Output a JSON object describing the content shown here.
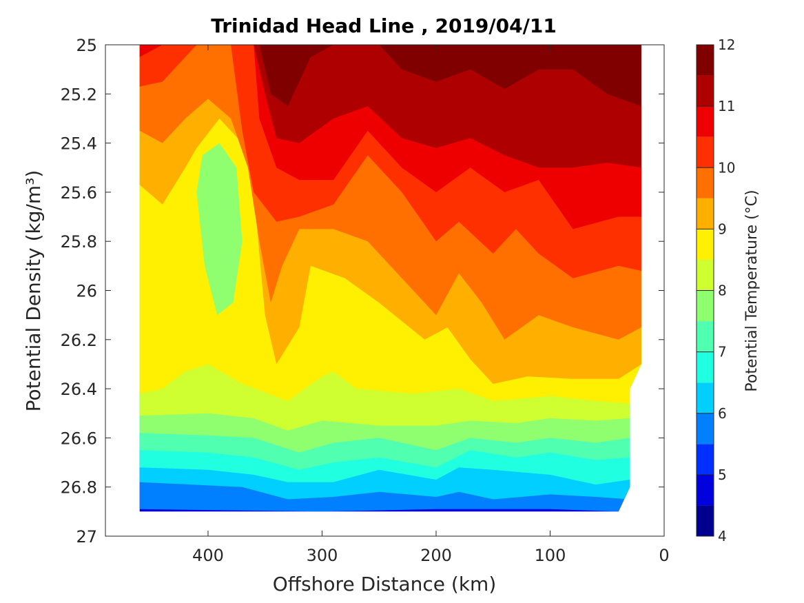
{
  "chart_data": {
    "type": "heatmap",
    "title": "Trinidad Head Line , 2019/04/11",
    "xlabel": "Offshore Distance (km)",
    "ylabel": "Potential Density (kg/m³)",
    "xlim": [
      490,
      0
    ],
    "ylim": [
      27,
      25
    ],
    "x_ticks": [
      "400",
      "300",
      "200",
      "100",
      "0"
    ],
    "x_tick_values": [
      400,
      300,
      200,
      100,
      0
    ],
    "y_ticks": [
      "25",
      "25.2",
      "25.4",
      "25.6",
      "25.8",
      "26",
      "26.2",
      "26.4",
      "26.6",
      "26.8",
      "27"
    ],
    "y_tick_values": [
      25,
      25.2,
      25.4,
      25.6,
      25.8,
      26,
      26.2,
      26.4,
      26.6,
      26.8,
      27
    ],
    "colorbar": {
      "label": "Potential Temperature (°C)",
      "ticks": [
        "4",
        "5",
        "6",
        "7",
        "8",
        "9",
        "10",
        "11",
        "12"
      ],
      "tick_values": [
        4,
        5,
        6,
        7,
        8,
        9,
        10,
        11,
        12
      ],
      "range": [
        4,
        12
      ],
      "levels": [
        4,
        4.5,
        5,
        5.5,
        6,
        6.5,
        7,
        7.5,
        8,
        8.5,
        9,
        9.5,
        10,
        10.5,
        11,
        11.5,
        12
      ],
      "colors": [
        "#00008f",
        "#0000df",
        "#0030ff",
        "#0080ff",
        "#00cfff",
        "#20ffdf",
        "#50ffaf",
        "#8fff70",
        "#cfff30",
        "#ffef00",
        "#ffaf00",
        "#ff7000",
        "#ff3000",
        "#ef0000",
        "#af0000",
        "#800000"
      ]
    },
    "data_extent": {
      "x_range_km": [
        460,
        20
      ],
      "density_range": [
        25,
        26.9
      ]
    },
    "contour_boundaries": [
      {
        "upper_band": 5.5,
        "lower_band": 4.5,
        "points": [
          [
            460,
            26.89
          ],
          [
            300,
            26.9
          ],
          [
            200,
            26.89
          ],
          [
            100,
            26.89
          ],
          [
            40,
            26.9
          ]
        ]
      },
      {
        "upper_band": 6.0,
        "lower_band": 5.5,
        "points": [
          [
            460,
            26.78
          ],
          [
            370,
            26.8
          ],
          [
            330,
            26.85
          ],
          [
            290,
            26.84
          ],
          [
            250,
            26.82
          ],
          [
            200,
            26.84
          ],
          [
            180,
            26.82
          ],
          [
            150,
            26.85
          ],
          [
            100,
            26.83
          ],
          [
            60,
            26.84
          ],
          [
            30,
            26.85
          ]
        ]
      },
      {
        "upper_band": 6.5,
        "lower_band": 6.0,
        "points": [
          [
            460,
            26.72
          ],
          [
            400,
            26.73
          ],
          [
            360,
            26.75
          ],
          [
            330,
            26.78
          ],
          [
            290,
            26.78
          ],
          [
            250,
            26.73
          ],
          [
            200,
            26.77
          ],
          [
            180,
            26.72
          ],
          [
            150,
            26.73
          ],
          [
            100,
            26.75
          ],
          [
            60,
            26.79
          ],
          [
            30,
            26.77
          ]
        ]
      },
      {
        "upper_band": 7.0,
        "lower_band": 6.5,
        "points": [
          [
            460,
            26.65
          ],
          [
            400,
            26.66
          ],
          [
            360,
            26.68
          ],
          [
            320,
            26.73
          ],
          [
            290,
            26.7
          ],
          [
            250,
            26.68
          ],
          [
            200,
            26.72
          ],
          [
            170,
            26.65
          ],
          [
            130,
            26.68
          ],
          [
            100,
            26.66
          ],
          [
            60,
            26.69
          ],
          [
            30,
            26.68
          ]
        ]
      },
      {
        "upper_band": 7.5,
        "lower_band": 7.0,
        "points": [
          [
            460,
            26.58
          ],
          [
            400,
            26.59
          ],
          [
            360,
            26.6
          ],
          [
            320,
            26.66
          ],
          [
            290,
            26.62
          ],
          [
            250,
            26.6
          ],
          [
            200,
            26.65
          ],
          [
            170,
            26.6
          ],
          [
            130,
            26.62
          ],
          [
            100,
            26.6
          ],
          [
            60,
            26.62
          ],
          [
            30,
            26.6
          ]
        ]
      },
      {
        "upper_band": 8.0,
        "lower_band": 7.5,
        "points": [
          [
            460,
            26.51
          ],
          [
            400,
            26.5
          ],
          [
            360,
            26.52
          ],
          [
            330,
            26.57
          ],
          [
            300,
            26.53
          ],
          [
            250,
            26.55
          ],
          [
            200,
            26.55
          ],
          [
            170,
            26.53
          ],
          [
            130,
            26.54
          ],
          [
            100,
            26.52
          ],
          [
            60,
            26.53
          ],
          [
            30,
            26.52
          ]
        ]
      },
      {
        "upper_band": 8.5,
        "lower_band": 8.0,
        "points": [
          [
            460,
            26.42
          ],
          [
            440,
            26.4
          ],
          [
            420,
            26.33
          ],
          [
            400,
            26.3
          ],
          [
            370,
            26.38
          ],
          [
            330,
            26.45
          ],
          [
            300,
            26.35
          ],
          [
            290,
            26.33
          ],
          [
            270,
            26.4
          ],
          [
            220,
            26.42
          ],
          [
            180,
            26.4
          ],
          [
            150,
            26.45
          ],
          [
            100,
            26.43
          ],
          [
            60,
            26.45
          ],
          [
            30,
            26.46
          ],
          [
            20,
            26.4
          ]
        ]
      },
      {
        "upper_band": 9.0,
        "lower_band": 8.5,
        "points": [
          [
            460,
            25.57
          ],
          [
            440,
            25.65
          ],
          [
            420,
            25.5
          ],
          [
            410,
            25.42
          ],
          [
            390,
            25.3
          ],
          [
            370,
            25.4
          ],
          [
            360,
            25.6
          ],
          [
            350,
            26.1
          ],
          [
            340,
            26.3
          ],
          [
            320,
            26.15
          ],
          [
            310,
            25.9
          ],
          [
            280,
            25.95
          ],
          [
            250,
            26.05
          ],
          [
            210,
            26.2
          ],
          [
            190,
            26.15
          ],
          [
            170,
            26.28
          ],
          [
            150,
            26.38
          ],
          [
            120,
            26.35
          ],
          [
            80,
            26.36
          ],
          [
            40,
            26.36
          ],
          [
            20,
            26.3
          ]
        ]
      },
      {
        "upper_band": 9.5,
        "lower_band": 9.0,
        "points": [
          [
            460,
            25.35
          ],
          [
            440,
            25.4
          ],
          [
            420,
            25.3
          ],
          [
            400,
            25.22
          ],
          [
            380,
            25.3
          ],
          [
            365,
            25.5
          ],
          [
            355,
            25.8
          ],
          [
            345,
            26.05
          ],
          [
            335,
            25.9
          ],
          [
            320,
            25.75
          ],
          [
            290,
            25.75
          ],
          [
            260,
            25.8
          ],
          [
            230,
            25.95
          ],
          [
            200,
            26.1
          ],
          [
            180,
            25.93
          ],
          [
            160,
            26.05
          ],
          [
            140,
            26.2
          ],
          [
            110,
            26.1
          ],
          [
            80,
            26.15
          ],
          [
            40,
            26.2
          ],
          [
            20,
            26.15
          ]
        ]
      },
      {
        "upper_band": 10.0,
        "lower_band": 9.5,
        "points": [
          [
            460,
            25.17
          ],
          [
            440,
            25.15
          ],
          [
            410,
            25.0
          ],
          [
            380,
            25.0
          ],
          [
            370,
            25.35
          ],
          [
            360,
            25.6
          ],
          [
            340,
            25.72
          ],
          [
            320,
            25.7
          ],
          [
            290,
            25.65
          ],
          [
            260,
            25.45
          ],
          [
            230,
            25.6
          ],
          [
            200,
            25.8
          ],
          [
            180,
            25.72
          ],
          [
            150,
            25.85
          ],
          [
            130,
            25.75
          ],
          [
            110,
            25.85
          ],
          [
            80,
            25.95
          ],
          [
            40,
            25.9
          ],
          [
            20,
            25.92
          ]
        ]
      },
      {
        "upper_band": 10.5,
        "lower_band": 10.0,
        "points": [
          [
            460,
            25.05
          ],
          [
            440,
            25.0
          ],
          [
            360,
            25.0
          ],
          [
            355,
            25.3
          ],
          [
            340,
            25.5
          ],
          [
            320,
            25.55
          ],
          [
            290,
            25.55
          ],
          [
            260,
            25.35
          ],
          [
            230,
            25.5
          ],
          [
            200,
            25.6
          ],
          [
            170,
            25.5
          ],
          [
            140,
            25.6
          ],
          [
            110,
            25.55
          ],
          [
            80,
            25.75
          ],
          [
            40,
            25.7
          ],
          [
            20,
            25.7
          ]
        ]
      },
      {
        "upper_band": 11.0,
        "lower_band": 10.5,
        "points": [
          [
            360,
            25.0
          ],
          [
            350,
            25.2
          ],
          [
            340,
            25.38
          ],
          [
            320,
            25.4
          ],
          [
            290,
            25.3
          ],
          [
            260,
            25.25
          ],
          [
            230,
            25.38
          ],
          [
            200,
            25.42
          ],
          [
            170,
            25.38
          ],
          [
            140,
            25.45
          ],
          [
            110,
            25.5
          ],
          [
            80,
            25.5
          ],
          [
            50,
            25.48
          ],
          [
            20,
            25.5
          ]
        ]
      },
      {
        "upper_band": 11.5,
        "lower_band": 11.0,
        "points": [
          [
            355,
            25.0
          ],
          [
            345,
            25.2
          ],
          [
            330,
            25.25
          ],
          [
            310,
            25.05
          ],
          [
            290,
            25.0
          ],
          [
            250,
            25.0
          ],
          [
            230,
            25.1
          ],
          [
            200,
            25.15
          ],
          [
            170,
            25.1
          ],
          [
            140,
            25.18
          ],
          [
            110,
            25.1
          ],
          [
            80,
            25.1
          ],
          [
            50,
            25.2
          ],
          [
            20,
            25.25
          ]
        ]
      }
    ],
    "closed_regions": [
      {
        "band": 7.75,
        "points": [
          [
            405,
            25.45
          ],
          [
            390,
            25.4
          ],
          [
            375,
            25.5
          ],
          [
            370,
            25.8
          ],
          [
            378,
            26.05
          ],
          [
            392,
            26.1
          ],
          [
            403,
            25.9
          ],
          [
            410,
            25.6
          ]
        ]
      }
    ]
  }
}
